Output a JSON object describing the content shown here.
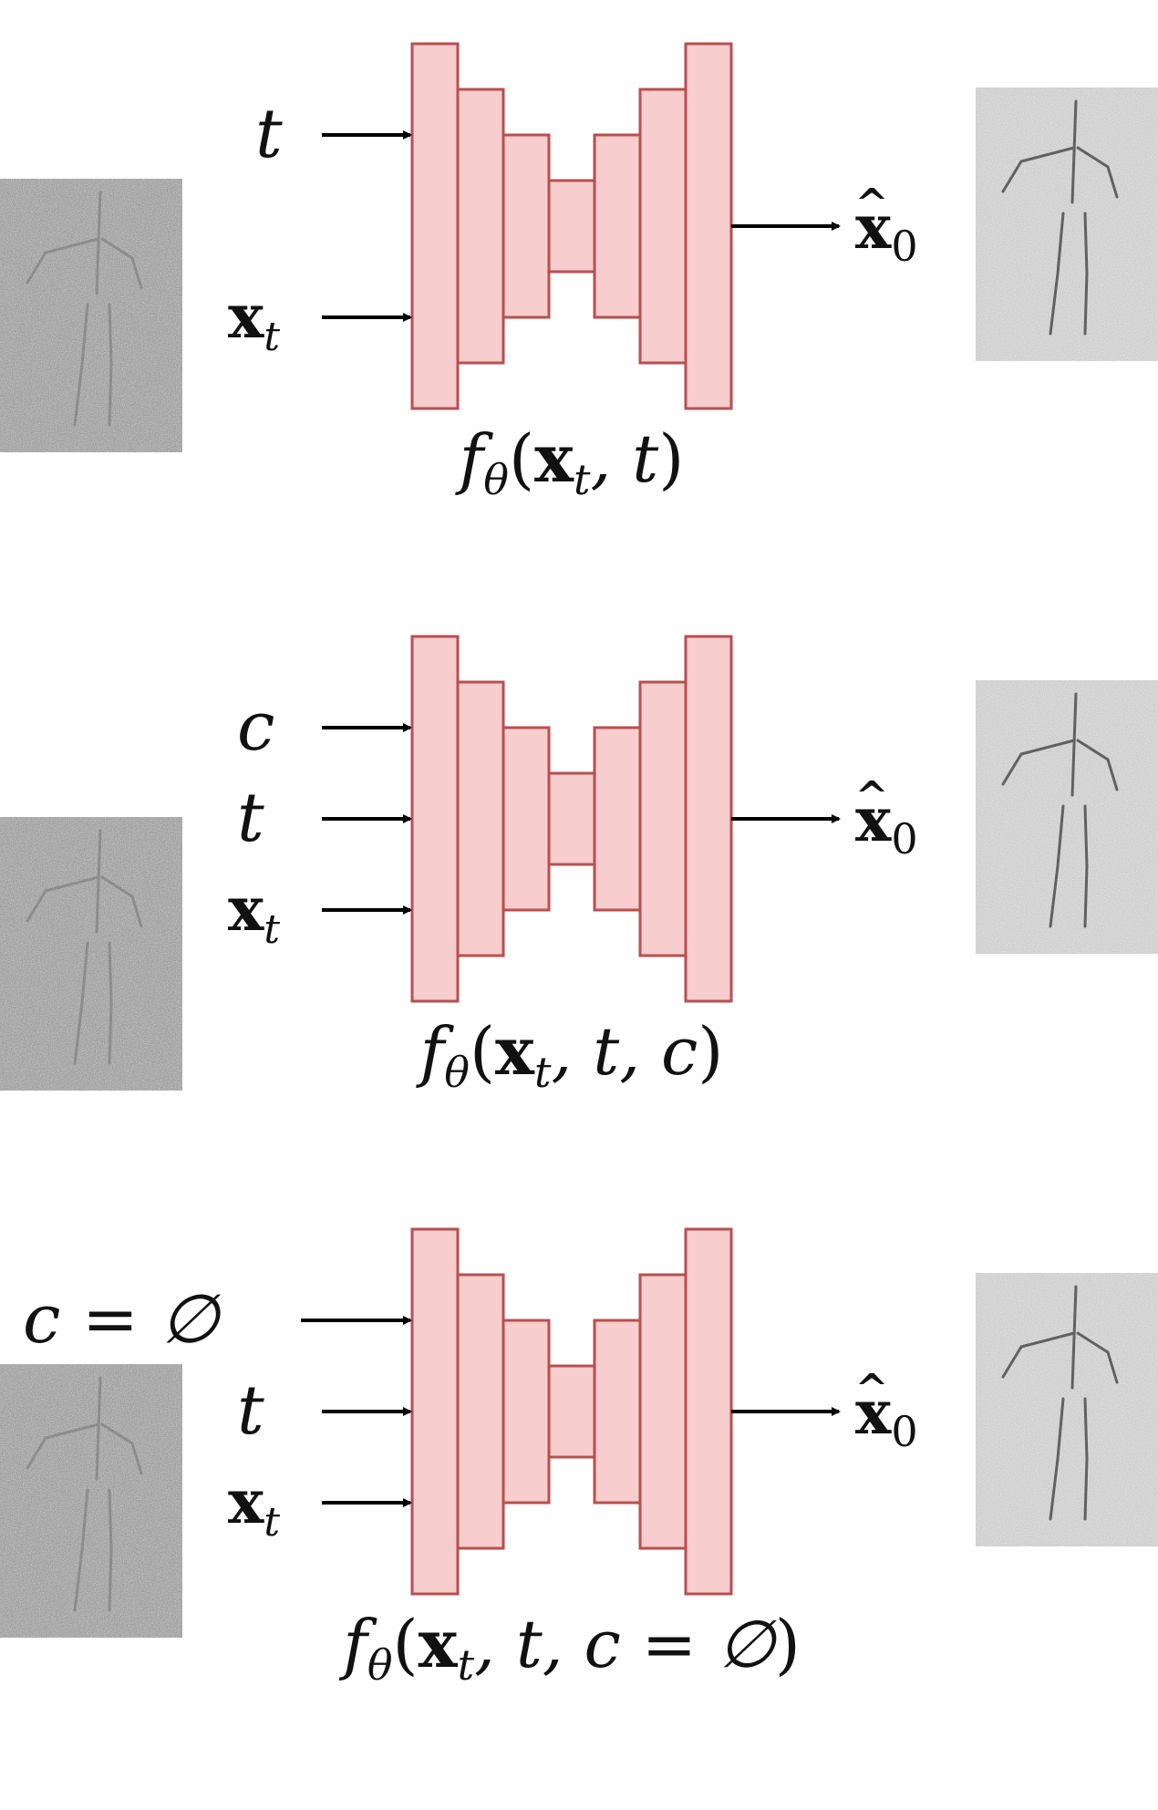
{
  "colors": {
    "block_fill": "#f7cdcd",
    "block_stroke": "#b84f4f",
    "arrow": "#000000",
    "noisy_bg": "#8f8f8f",
    "clean_bg": "#c4c4c4",
    "figure": "#555555"
  },
  "panels": [
    {
      "inputs": [
        {
          "kind": "t",
          "text": "t"
        },
        {
          "kind": "x",
          "base": "x",
          "sub": "t"
        }
      ],
      "output": {
        "base": "x",
        "hat": "^",
        "sub": "0"
      },
      "caption": {
        "f": "f",
        "f_sub": "θ",
        "open": "(",
        "x": "x",
        "x_sub": "t",
        "rest": ", t",
        "close": ")"
      },
      "input_image": "noisy-skeleton-image",
      "output_image": "denoised-skeleton-image"
    },
    {
      "inputs": [
        {
          "kind": "c",
          "text": "c"
        },
        {
          "kind": "t",
          "text": "t"
        },
        {
          "kind": "x",
          "base": "x",
          "sub": "t"
        }
      ],
      "output": {
        "base": "x",
        "hat": "^",
        "sub": "0"
      },
      "caption": {
        "f": "f",
        "f_sub": "θ",
        "open": "(",
        "x": "x",
        "x_sub": "t",
        "rest": ", t, c",
        "close": ")"
      },
      "input_image": "noisy-skeleton-image",
      "output_image": "denoised-skeleton-image"
    },
    {
      "inputs": [
        {
          "kind": "c_null",
          "text": "c = ∅"
        },
        {
          "kind": "t",
          "text": "t"
        },
        {
          "kind": "x",
          "base": "x",
          "sub": "t"
        }
      ],
      "output": {
        "base": "x",
        "hat": "^",
        "sub": "0"
      },
      "caption": {
        "f": "f",
        "f_sub": "θ",
        "open": "(",
        "x": "x",
        "x_sub": "t",
        "rest": ", t, c = ∅",
        "close": ")"
      },
      "input_image": "noisy-skeleton-image",
      "output_image": "denoised-skeleton-image"
    }
  ]
}
